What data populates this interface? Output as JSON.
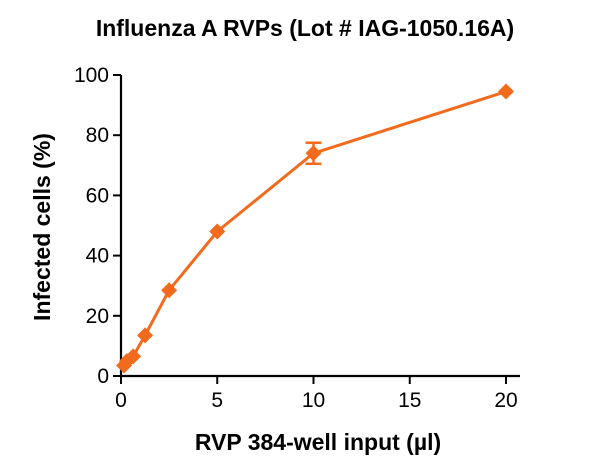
{
  "chart_data": {
    "type": "line",
    "title": "Influenza A RVPs (Lot # IAG-1050.16A)",
    "xlabel": "RVP 384-well input (µl)",
    "ylabel": "Infected cells (%)",
    "xlim": [
      0,
      20
    ],
    "ylim": [
      0,
      100
    ],
    "xticks": [
      0,
      5,
      10,
      15,
      20
    ],
    "yticks": [
      0,
      20,
      40,
      60,
      80,
      100
    ],
    "grid": false,
    "series": [
      {
        "color": "#f26b1d",
        "marker": "diamond",
        "x": [
          0.16,
          0.31,
          0.63,
          1.25,
          2.5,
          5,
          10,
          20
        ],
        "y": [
          3.5,
          5,
          6.5,
          13.5,
          28.5,
          48,
          74,
          94.5
        ],
        "error": [
          0,
          0,
          0,
          0,
          0,
          0,
          3.5,
          0
        ]
      }
    ]
  }
}
